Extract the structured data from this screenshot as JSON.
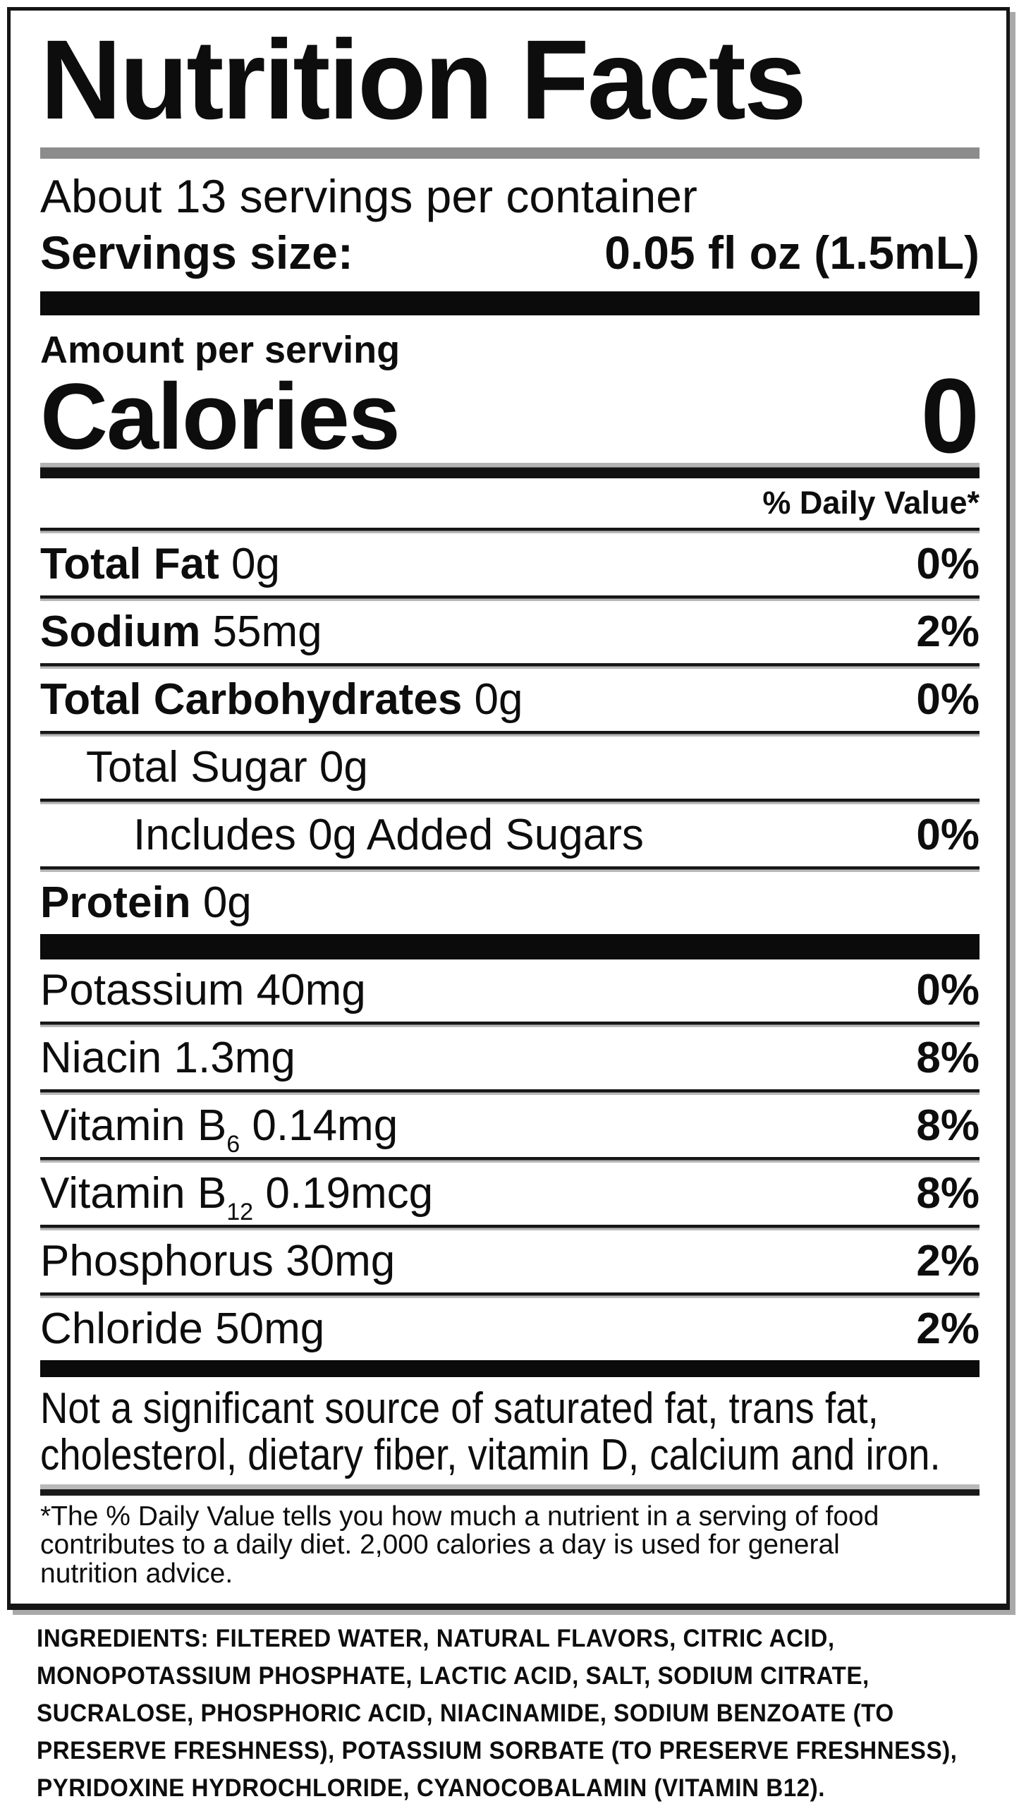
{
  "panel": {
    "title": "Nutrition Facts",
    "servings_per_container": "About 13 servings per container",
    "serving_size_label": "Servings size:",
    "serving_size_value": "0.05 fl oz (1.5mL)",
    "amount_per_serving_label": "Amount per serving",
    "calories_label": "Calories",
    "calories_value": "0",
    "daily_value_header": "% Daily Value*",
    "not_significant_text": "Not a significant source of saturated fat, trans fat,\ncholesterol, dietary fiber, vitamin D, calcium and iron.",
    "footnote": "*The % Daily Value tells you how much a nutrient in a serving of food\ncontributes to a daily diet. 2,000 calories a day is used for general\nnutrition advice."
  },
  "nutrients": {
    "main": [
      {
        "indent": 0,
        "segments": [
          {
            "text": "Total Fat",
            "bold": true
          },
          {
            "text": " 0g"
          }
        ],
        "pct": "0%"
      },
      {
        "indent": 0,
        "segments": [
          {
            "text": "Sodium",
            "bold": true
          },
          {
            "text": " 55mg"
          }
        ],
        "pct": "2%"
      },
      {
        "indent": 0,
        "segments": [
          {
            "text": "Total Carbohydrates",
            "bold": true
          },
          {
            "text": " 0g"
          }
        ],
        "pct": "0%"
      },
      {
        "indent": 1,
        "segments": [
          {
            "text": "Total Sugar 0g"
          }
        ],
        "pct": ""
      },
      {
        "indent": 2,
        "segments": [
          {
            "text": "Includes 0g Added Sugars"
          }
        ],
        "pct": "0%"
      },
      {
        "indent": 0,
        "segments": [
          {
            "text": "Protein",
            "bold": true
          },
          {
            "text": " 0g"
          }
        ],
        "pct": ""
      }
    ],
    "micros": [
      {
        "indent": 0,
        "segments": [
          {
            "text": "Potassium 40mg"
          }
        ],
        "pct": "0%"
      },
      {
        "indent": 0,
        "segments": [
          {
            "text": "Niacin 1.3mg"
          }
        ],
        "pct": "8%"
      },
      {
        "indent": 0,
        "segments": [
          {
            "text": "Vitamin B"
          },
          {
            "text": "6",
            "sub": true
          },
          {
            "text": " 0.14mg"
          }
        ],
        "pct": "8%"
      },
      {
        "indent": 0,
        "segments": [
          {
            "text": "Vitamin B"
          },
          {
            "text": "12",
            "sub": true
          },
          {
            "text": " 0.19mcg"
          }
        ],
        "pct": "8%"
      },
      {
        "indent": 0,
        "segments": [
          {
            "text": "Phosphorus 30mg"
          }
        ],
        "pct": "2%"
      },
      {
        "indent": 0,
        "segments": [
          {
            "text": "Chloride 50mg"
          }
        ],
        "pct": "2%"
      }
    ]
  },
  "ingredients": {
    "text": "INGREDIENTS: FILTERED WATER, NATURAL FLAVORS, CITRIC ACID,\nMONOPOTASSIUM PHOSPHATE, LACTIC ACID, SALT, SODIUM CITRATE,\nSUCRALOSE, PHOSPHORIC ACID, NIACINAMIDE, SODIUM BENZOATE (TO\nPRESERVE FRESHNESS), POTASSIUM SORBATE (TO PRESERVE FRESHNESS),\nPYRIDOXINE HYDROCHLORIDE, CYANOCOBALAMIN (VITAMIN B12)."
  },
  "colors": {
    "text": "#0d0d0d",
    "background": "#ffffff",
    "title_divider_gray": "#8c8c8c",
    "section_bar_black": "#0b0b0b",
    "divider_shadow_gray": "#b9b9b9",
    "panel_shadow_gray": "#a9a9a9"
  }
}
